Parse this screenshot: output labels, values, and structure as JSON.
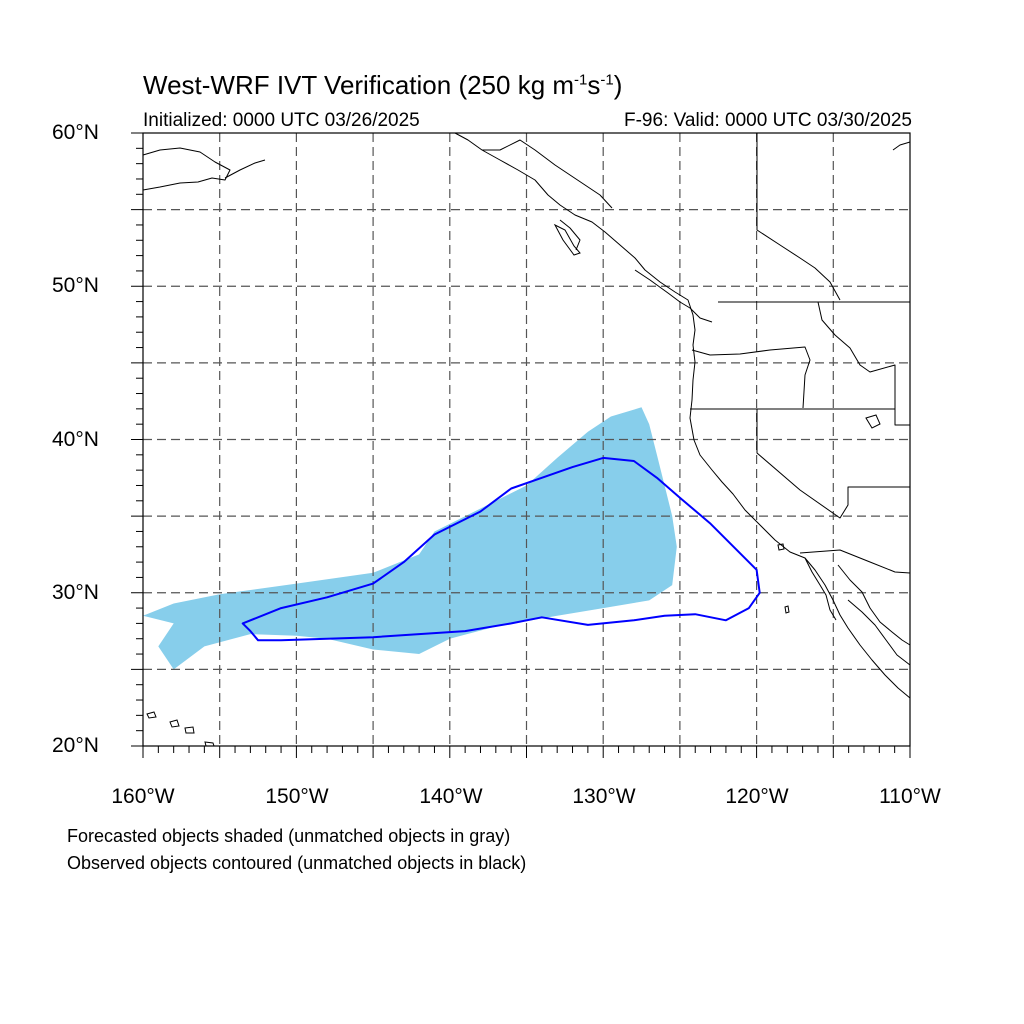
{
  "title": {
    "main": "West-WRF IVT Verification (250 kg m",
    "sup1": "-1",
    "mid": "s",
    "sup2": "-1",
    "end": ")"
  },
  "subtitle": {
    "initialized": "Initialized: 0000 UTC 03/26/2025",
    "valid": "F-96: Valid: 0000 UTC 03/30/2025"
  },
  "axes": {
    "lat_labels": [
      "60°N",
      "50°N",
      "40°N",
      "30°N",
      "20°N"
    ],
    "lon_labels": [
      "160°W",
      "150°W",
      "140°W",
      "130°W",
      "120°W",
      "110°W"
    ],
    "lat_range": [
      20,
      60
    ],
    "lon_range": [
      -160,
      -110
    ],
    "grid_spacing_deg": 5,
    "grid": true
  },
  "legend": {
    "line1": "Forecasted objects shaded (unmatched objects in gray)",
    "line2": "Observed objects contoured (unmatched objects in black)"
  },
  "colors": {
    "forecast_fill": "#87ceeb",
    "observed_contour": "#0000ff",
    "coastline": "#000000",
    "grid": "#555555"
  },
  "objects": {
    "forecast_shaded": {
      "matched": true,
      "outline_lonlat": [
        [
          -160,
          28.5
        ],
        [
          -158,
          29.3
        ],
        [
          -155,
          29.9
        ],
        [
          -150,
          30.6
        ],
        [
          -145,
          31.3
        ],
        [
          -142,
          32.5
        ],
        [
          -141,
          34
        ],
        [
          -138,
          35.5
        ],
        [
          -135,
          37
        ],
        [
          -133,
          38.8
        ],
        [
          -131,
          40.5
        ],
        [
          -129.5,
          41.5
        ],
        [
          -127.5,
          42.1
        ],
        [
          -127,
          41
        ],
        [
          -126.5,
          39
        ],
        [
          -126,
          37
        ],
        [
          -125.5,
          35
        ],
        [
          -125.2,
          33
        ],
        [
          -125.5,
          30.5
        ],
        [
          -127,
          29.5
        ],
        [
          -130,
          29
        ],
        [
          -133,
          28.5
        ],
        [
          -137,
          27.8
        ],
        [
          -140,
          27
        ],
        [
          -142,
          26
        ],
        [
          -145,
          26.3
        ],
        [
          -148,
          27
        ],
        [
          -150,
          27.2
        ],
        [
          -153,
          27.3
        ],
        [
          -156,
          26.5
        ],
        [
          -158,
          25
        ],
        [
          -159,
          26.5
        ],
        [
          -158,
          28
        ]
      ]
    },
    "observed_contour": {
      "matched": true,
      "outline_lonlat": [
        [
          -153.5,
          28
        ],
        [
          -151,
          29
        ],
        [
          -148,
          29.7
        ],
        [
          -145,
          30.6
        ],
        [
          -143,
          32
        ],
        [
          -141,
          33.8
        ],
        [
          -138,
          35.3
        ],
        [
          -136,
          36.8
        ],
        [
          -134,
          37.5
        ],
        [
          -132,
          38.2
        ],
        [
          -130,
          38.8
        ],
        [
          -128,
          38.6
        ],
        [
          -126.5,
          37.5
        ],
        [
          -125,
          36.2
        ],
        [
          -123,
          34.5
        ],
        [
          -121.5,
          33
        ],
        [
          -120,
          31.5
        ],
        [
          -119.8,
          30
        ],
        [
          -120.5,
          29
        ],
        [
          -122,
          28.2
        ],
        [
          -124,
          28.6
        ],
        [
          -126,
          28.5
        ],
        [
          -128,
          28.2
        ],
        [
          -131,
          27.9
        ],
        [
          -134,
          28.4
        ],
        [
          -136,
          28
        ],
        [
          -139,
          27.5
        ],
        [
          -142,
          27.3
        ],
        [
          -145,
          27.1
        ],
        [
          -148,
          27
        ],
        [
          -151,
          26.9
        ],
        [
          -152.5,
          26.9
        ],
        [
          -153,
          27.5
        ]
      ]
    }
  }
}
